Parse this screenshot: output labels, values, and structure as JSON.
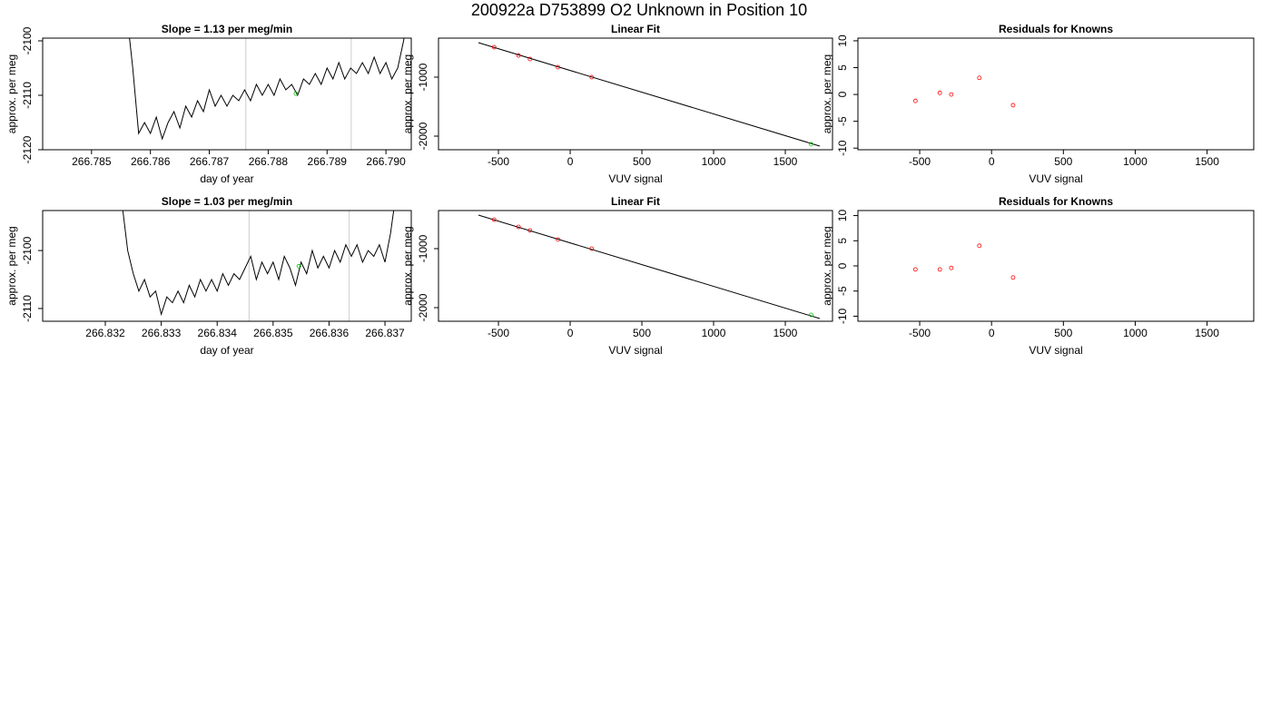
{
  "title": "200922a     D753899   O2 Unknown in Position  10",
  "chart_data": [
    {
      "type": "line",
      "title": "Slope =  1.13  per meg/min",
      "xlabel": "day of year",
      "ylabel": "approx. per meg",
      "xlim": [
        266.78417,
        266.79043
      ],
      "ylim": [
        -2120,
        -2099.5
      ],
      "xticks": [
        266.785,
        266.786,
        266.787,
        266.788,
        266.789,
        {
          "value": 266.79,
          "label": "266.790"
        }
      ],
      "yticks": [
        -2100,
        -2110,
        -2120
      ],
      "color": "#000000",
      "x": [
        266.7856,
        266.7857,
        266.7858,
        266.7859,
        266.786,
        266.7861,
        266.7862,
        266.7863,
        266.7864,
        266.7865,
        266.7866,
        266.7867,
        266.7868,
        266.7869,
        266.787,
        266.7871,
        266.7872,
        266.7873,
        266.7874,
        266.7875,
        266.7876,
        266.7877,
        266.7878,
        266.7879,
        266.788,
        266.7881,
        266.7882,
        266.7883,
        266.7884,
        266.7885,
        266.7886,
        266.7887,
        266.7888,
        266.7889,
        266.789,
        266.7891,
        266.7892,
        266.7893,
        266.7894,
        266.7895,
        266.7896,
        266.7897,
        266.7898,
        266.7899,
        266.79,
        266.7901,
        266.7902,
        266.7903,
        266.7904
      ],
      "values": [
        -2095,
        -2105,
        -2117,
        -2115,
        -2117,
        -2114,
        -2118,
        -2115,
        -2113,
        -2116,
        -2112,
        -2114,
        -2111,
        -2113,
        -2109,
        -2112,
        -2110,
        -2112,
        -2110,
        -2111,
        -2109,
        -2111,
        -2108,
        -2110,
        -2108,
        -2110,
        -2107,
        -2109,
        -2108,
        -2110,
        -2107,
        -2108,
        -2106,
        -2108,
        -2105,
        -2107,
        -2104,
        -2107,
        -2105,
        -2106,
        -2104,
        -2106,
        -2103,
        -2106,
        -2104,
        -2107,
        -2105,
        -2100,
        -2092
      ],
      "vlines": [
        266.78762,
        266.78941
      ],
      "vline_color": "#cccccc",
      "highlight": {
        "x": 266.78847,
        "y": -2109.7,
        "color": "#00cc00"
      }
    },
    {
      "type": "scatter",
      "title": "Linear Fit",
      "xlabel": "VUV signal",
      "ylabel": "approx. per meg",
      "xlim": [
        -918,
        1829
      ],
      "ylim": [
        -2231,
        -338
      ],
      "xticks": [
        -500,
        0,
        500,
        1000,
        1500
      ],
      "yticks": [
        -1000,
        -2000
      ],
      "marker_color": "#ff0000",
      "x": [
        -530,
        -360,
        -280,
        -85,
        150
      ],
      "values": [
        -492,
        -631,
        -692,
        -831,
        -1000
      ],
      "fit": {
        "x": [
          -640,
          1740
        ],
        "values": [
          -415,
          -2169
        ],
        "color": "#000000"
      },
      "highlight": {
        "x": 1680,
        "y": -2138,
        "color": "#00cc00"
      }
    },
    {
      "type": "scatter",
      "title": "Residuals for Knowns",
      "xlabel": "VUV signal",
      "ylabel": "approx. per meg",
      "xlim": [
        -930,
        1825
      ],
      "ylim": [
        -10.3,
        10.5
      ],
      "xticks": [
        -500,
        0,
        500,
        1000,
        1500
      ],
      "yticks": [
        10,
        5,
        0,
        -5,
        -10
      ],
      "marker_color": "#ff0000",
      "x": [
        -530,
        -360,
        -280,
        -85,
        150
      ],
      "values": [
        -1.2,
        0.3,
        0,
        3.1,
        -2
      ]
    },
    {
      "type": "line",
      "title": "Slope =  1.03  per meg/min",
      "xlabel": "day of year",
      "ylabel": "approx. per meg",
      "xlim": [
        266.83088,
        266.83747
      ],
      "ylim": [
        -2112.2,
        -2093.1
      ],
      "xticks": [
        266.832,
        266.833,
        266.834,
        266.835,
        266.836,
        266.837
      ],
      "yticks": [
        -2100,
        -2110
      ],
      "color": "#000000",
      "x": [
        266.8323,
        266.8324,
        266.8325,
        266.8326,
        266.8327,
        266.8328,
        266.8329,
        266.833,
        266.8331,
        266.8332,
        266.8333,
        266.8334,
        266.8335,
        266.8336,
        266.8337,
        266.8338,
        266.8339,
        266.834,
        266.8341,
        266.8342,
        266.8343,
        266.8344,
        266.8345,
        266.8346,
        266.8347,
        266.8348,
        266.8349,
        266.835,
        266.8351,
        266.8352,
        266.8353,
        266.8354,
        266.8355,
        266.8356,
        266.8357,
        266.8358,
        266.8359,
        266.836,
        266.8361,
        266.8362,
        266.8363,
        266.8364,
        266.8365,
        266.8366,
        266.8367,
        266.8368,
        266.8369,
        266.837,
        266.8371,
        266.8372
      ],
      "values": [
        -2092,
        -2100,
        -2104,
        -2107,
        -2105,
        -2108,
        -2107,
        -2111,
        -2108,
        -2109,
        -2107,
        -2109,
        -2106,
        -2108,
        -2105,
        -2107,
        -2105,
        -2107,
        -2104,
        -2106,
        -2104,
        -2105,
        -2103,
        -2101,
        -2105,
        -2102,
        -2104,
        -2102,
        -2105,
        -2101,
        -2103,
        -2106,
        -2102,
        -2104,
        -2100,
        -2103,
        -2101,
        -2103,
        -2100,
        -2102,
        -2099,
        -2101,
        -2099,
        -2102,
        -2100,
        -2101,
        -2099,
        -2102,
        -2097,
        -2090
      ],
      "vlines": [
        266.83457,
        266.83636
      ],
      "vline_color": "#cccccc",
      "highlight": {
        "x": 266.83546,
        "y": -2102.7,
        "color": "#00cc00"
      }
    },
    {
      "type": "scatter",
      "title": "Linear Fit",
      "xlabel": "VUV signal",
      "ylabel": "approx. per meg",
      "xlim": [
        -918,
        1829
      ],
      "ylim": [
        -2231,
        -354
      ],
      "xticks": [
        -500,
        0,
        500,
        1000,
        1500
      ],
      "yticks": [
        -1000,
        -2000
      ],
      "marker_color": "#ff0000",
      "x": [
        -530,
        -360,
        -280,
        -85,
        150
      ],
      "values": [
        -508,
        -631,
        -692,
        -846,
        -1000
      ],
      "fit": {
        "x": [
          -640,
          1740
        ],
        "values": [
          -431,
          -2185
        ],
        "color": "#000000"
      },
      "highlight": {
        "x": 1680,
        "y": -2123,
        "color": "#00cc00"
      }
    },
    {
      "type": "scatter",
      "title": "Residuals for Knowns",
      "xlabel": "VUV signal",
      "ylabel": "approx. per meg",
      "xlim": [
        -930,
        1825
      ],
      "ylim": [
        -11,
        11
      ],
      "xticks": [
        -500,
        0,
        500,
        1000,
        1500
      ],
      "yticks": [
        10,
        5,
        0,
        -5,
        -10
      ],
      "marker_color": "#ff0000",
      "x": [
        -530,
        -360,
        -280,
        -85,
        150
      ],
      "values": [
        -0.7,
        -0.7,
        -0.4,
        4,
        -2.3
      ]
    }
  ]
}
